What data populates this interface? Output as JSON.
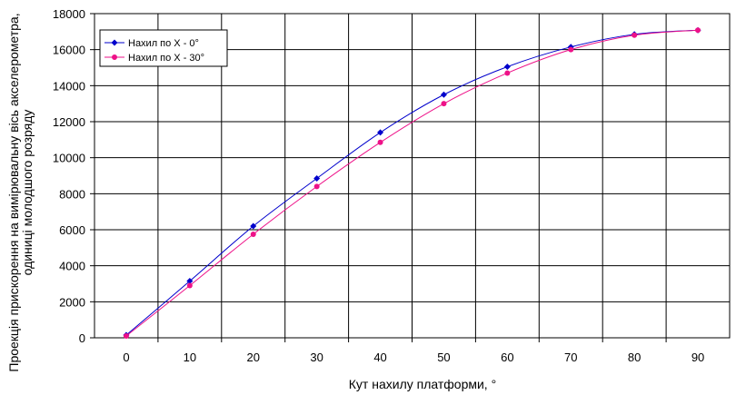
{
  "chart_data": {
    "type": "line",
    "title": "",
    "xlabel": "Кут нахилу платформи, °",
    "ylabel_line1": "Проекція прискорення на вимірювальну вісь акселерометра,",
    "ylabel_line2": "одиниці молодшого розряду",
    "x": [
      0,
      10,
      20,
      30,
      40,
      50,
      60,
      70,
      80,
      90
    ],
    "xlim": [
      -5,
      95
    ],
    "ylim": [
      0,
      18000
    ],
    "xticks": [
      "0",
      "10",
      "20",
      "30",
      "40",
      "50",
      "60",
      "70",
      "80",
      "90"
    ],
    "yticks": [
      "0",
      "2000",
      "4000",
      "6000",
      "8000",
      "10000",
      "12000",
      "14000",
      "16000",
      "18000"
    ],
    "grid": true,
    "legend_position": "top-left",
    "series": [
      {
        "name": "Нахил по X - 0°",
        "color": "#0000cc",
        "marker": "diamond",
        "values": [
          150,
          3150,
          6200,
          8850,
          11400,
          13500,
          15050,
          16150,
          16850,
          17080
        ]
      },
      {
        "name": "Нахил по X - 30°",
        "color": "#ee1188",
        "marker": "circle",
        "values": [
          100,
          2900,
          5750,
          8400,
          10850,
          13000,
          14700,
          16000,
          16800,
          17080
        ]
      }
    ]
  }
}
